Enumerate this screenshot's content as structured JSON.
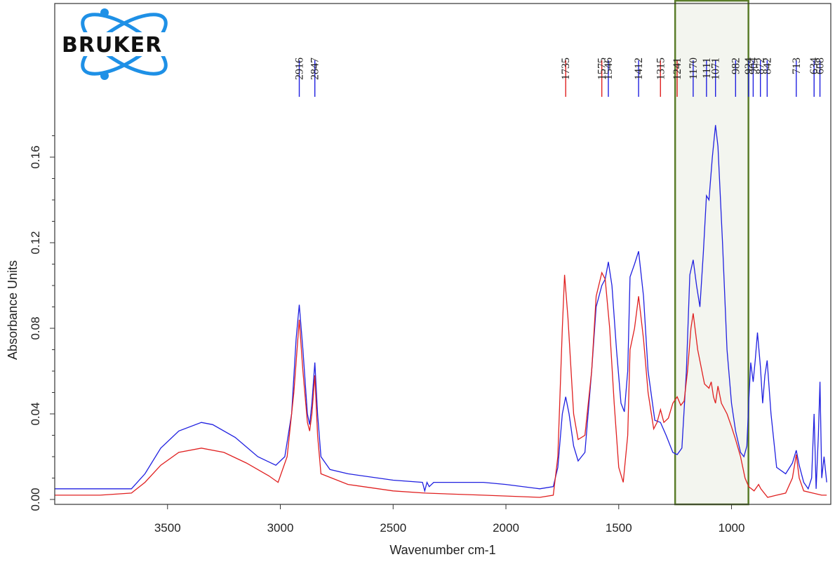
{
  "logo": {
    "text": "BRUKER",
    "accent_color": "#1e90e6"
  },
  "chart_data": {
    "type": "line",
    "xlabel": "Wavenumber cm-1",
    "ylabel": "Absorbance Units",
    "xlim": [
      4000,
      560
    ],
    "ylim": [
      0.0,
      0.18
    ],
    "x_reversed": true,
    "grid": false,
    "x_ticks": [
      3500,
      3000,
      2500,
      2000,
      1500,
      1000
    ],
    "y_ticks": [
      0.0,
      0.04,
      0.08,
      0.12,
      0.16
    ],
    "y_tick_labels": [
      "0.00",
      "0.04",
      "0.08",
      "0.12",
      "0.16"
    ],
    "highlight_region": {
      "x_range": [
        1250,
        925
      ],
      "border_color": "#5a7d2a",
      "fill_color": "#f3f5ef"
    },
    "series": [
      {
        "color": "#2020e0",
        "points": [
          [
            4000,
            0.005
          ],
          [
            3800,
            0.005
          ],
          [
            3660,
            0.005
          ],
          [
            3600,
            0.012
          ],
          [
            3530,
            0.024
          ],
          [
            3450,
            0.032
          ],
          [
            3350,
            0.036
          ],
          [
            3300,
            0.035
          ],
          [
            3200,
            0.029
          ],
          [
            3100,
            0.02
          ],
          [
            3020,
            0.016
          ],
          [
            2980,
            0.02
          ],
          [
            2950,
            0.04
          ],
          [
            2930,
            0.075
          ],
          [
            2916,
            0.091
          ],
          [
            2900,
            0.07
          ],
          [
            2880,
            0.04
          ],
          [
            2870,
            0.035
          ],
          [
            2860,
            0.045
          ],
          [
            2847,
            0.064
          ],
          [
            2835,
            0.04
          ],
          [
            2820,
            0.02
          ],
          [
            2780,
            0.014
          ],
          [
            2700,
            0.012
          ],
          [
            2500,
            0.009
          ],
          [
            2370,
            0.008
          ],
          [
            2360,
            0.004
          ],
          [
            2350,
            0.008
          ],
          [
            2340,
            0.006
          ],
          [
            2320,
            0.008
          ],
          [
            2100,
            0.008
          ],
          [
            2000,
            0.007
          ],
          [
            1850,
            0.005
          ],
          [
            1790,
            0.006
          ],
          [
            1770,
            0.015
          ],
          [
            1750,
            0.04
          ],
          [
            1735,
            0.048
          ],
          [
            1720,
            0.04
          ],
          [
            1700,
            0.025
          ],
          [
            1680,
            0.018
          ],
          [
            1650,
            0.022
          ],
          [
            1620,
            0.06
          ],
          [
            1600,
            0.09
          ],
          [
            1575,
            0.1
          ],
          [
            1560,
            0.103
          ],
          [
            1546,
            0.111
          ],
          [
            1530,
            0.1
          ],
          [
            1510,
            0.07
          ],
          [
            1490,
            0.045
          ],
          [
            1475,
            0.041
          ],
          [
            1460,
            0.06
          ],
          [
            1450,
            0.104
          ],
          [
            1430,
            0.11
          ],
          [
            1412,
            0.116
          ],
          [
            1390,
            0.095
          ],
          [
            1370,
            0.06
          ],
          [
            1340,
            0.037
          ],
          [
            1315,
            0.036
          ],
          [
            1290,
            0.03
          ],
          [
            1260,
            0.022
          ],
          [
            1241,
            0.021
          ],
          [
            1220,
            0.024
          ],
          [
            1200,
            0.06
          ],
          [
            1185,
            0.105
          ],
          [
            1170,
            0.112
          ],
          [
            1155,
            0.1
          ],
          [
            1140,
            0.09
          ],
          [
            1125,
            0.115
          ],
          [
            1111,
            0.142
          ],
          [
            1100,
            0.14
          ],
          [
            1085,
            0.16
          ],
          [
            1071,
            0.175
          ],
          [
            1060,
            0.165
          ],
          [
            1040,
            0.12
          ],
          [
            1020,
            0.07
          ],
          [
            1000,
            0.045
          ],
          [
            982,
            0.032
          ],
          [
            960,
            0.022
          ],
          [
            945,
            0.02
          ],
          [
            932,
            0.025
          ],
          [
            924,
            0.045
          ],
          [
            915,
            0.064
          ],
          [
            904,
            0.055
          ],
          [
            895,
            0.065
          ],
          [
            885,
            0.078
          ],
          [
            872,
            0.062
          ],
          [
            862,
            0.045
          ],
          [
            852,
            0.058
          ],
          [
            842,
            0.065
          ],
          [
            825,
            0.04
          ],
          [
            800,
            0.015
          ],
          [
            760,
            0.012
          ],
          [
            730,
            0.017
          ],
          [
            713,
            0.023
          ],
          [
            700,
            0.016
          ],
          [
            680,
            0.008
          ],
          [
            660,
            0.005
          ],
          [
            645,
            0.01
          ],
          [
            634,
            0.04
          ],
          [
            625,
            0.005
          ],
          [
            615,
            0.03
          ],
          [
            608,
            0.055
          ],
          [
            600,
            0.01
          ],
          [
            590,
            0.02
          ],
          [
            578,
            0.008
          ]
        ]
      },
      {
        "color": "#e02020",
        "points": [
          [
            4000,
            0.002
          ],
          [
            3800,
            0.002
          ],
          [
            3660,
            0.003
          ],
          [
            3600,
            0.008
          ],
          [
            3530,
            0.016
          ],
          [
            3450,
            0.022
          ],
          [
            3350,
            0.024
          ],
          [
            3250,
            0.022
          ],
          [
            3150,
            0.017
          ],
          [
            3050,
            0.011
          ],
          [
            3010,
            0.008
          ],
          [
            2970,
            0.02
          ],
          [
            2940,
            0.05
          ],
          [
            2916,
            0.084
          ],
          [
            2900,
            0.06
          ],
          [
            2880,
            0.036
          ],
          [
            2870,
            0.032
          ],
          [
            2860,
            0.04
          ],
          [
            2847,
            0.058
          ],
          [
            2835,
            0.03
          ],
          [
            2820,
            0.012
          ],
          [
            2700,
            0.007
          ],
          [
            2500,
            0.004
          ],
          [
            2360,
            0.003
          ],
          [
            2100,
            0.002
          ],
          [
            1850,
            0.001
          ],
          [
            1790,
            0.002
          ],
          [
            1770,
            0.02
          ],
          [
            1750,
            0.08
          ],
          [
            1740,
            0.105
          ],
          [
            1725,
            0.085
          ],
          [
            1700,
            0.04
          ],
          [
            1680,
            0.028
          ],
          [
            1650,
            0.03
          ],
          [
            1620,
            0.06
          ],
          [
            1600,
            0.095
          ],
          [
            1575,
            0.106
          ],
          [
            1560,
            0.103
          ],
          [
            1540,
            0.08
          ],
          [
            1520,
            0.045
          ],
          [
            1500,
            0.015
          ],
          [
            1480,
            0.008
          ],
          [
            1460,
            0.03
          ],
          [
            1450,
            0.07
          ],
          [
            1430,
            0.08
          ],
          [
            1412,
            0.095
          ],
          [
            1390,
            0.075
          ],
          [
            1370,
            0.05
          ],
          [
            1345,
            0.033
          ],
          [
            1330,
            0.036
          ],
          [
            1315,
            0.042
          ],
          [
            1300,
            0.036
          ],
          [
            1280,
            0.038
          ],
          [
            1260,
            0.045
          ],
          [
            1241,
            0.048
          ],
          [
            1225,
            0.044
          ],
          [
            1210,
            0.046
          ],
          [
            1195,
            0.06
          ],
          [
            1180,
            0.08
          ],
          [
            1170,
            0.087
          ],
          [
            1150,
            0.07
          ],
          [
            1120,
            0.054
          ],
          [
            1100,
            0.052
          ],
          [
            1090,
            0.055
          ],
          [
            1080,
            0.048
          ],
          [
            1071,
            0.045
          ],
          [
            1060,
            0.053
          ],
          [
            1045,
            0.045
          ],
          [
            1020,
            0.04
          ],
          [
            1000,
            0.034
          ],
          [
            982,
            0.028
          ],
          [
            960,
            0.02
          ],
          [
            940,
            0.01
          ],
          [
            924,
            0.006
          ],
          [
            900,
            0.004
          ],
          [
            880,
            0.007
          ],
          [
            870,
            0.005
          ],
          [
            840,
            0.001
          ],
          [
            800,
            0.002
          ],
          [
            760,
            0.003
          ],
          [
            730,
            0.01
          ],
          [
            713,
            0.021
          ],
          [
            700,
            0.01
          ],
          [
            680,
            0.004
          ],
          [
            640,
            0.003
          ],
          [
            600,
            0.002
          ],
          [
            578,
            0.002
          ]
        ]
      }
    ],
    "peak_labels": [
      {
        "label": "2916",
        "x": 2916,
        "color": "#2020e0"
      },
      {
        "label": "2847",
        "x": 2847,
        "color": "#2020e0"
      },
      {
        "label": "1735",
        "x": 1735,
        "color": "#e02020"
      },
      {
        "label": "1575",
        "x": 1575,
        "color": "#e02020"
      },
      {
        "label": "1546",
        "x": 1546,
        "color": "#2020e0"
      },
      {
        "label": "1412",
        "x": 1412,
        "color": "#2020e0"
      },
      {
        "label": "1315",
        "x": 1315,
        "color": "#e02020"
      },
      {
        "label": "1241",
        "x": 1241,
        "color": "#e02020"
      },
      {
        "label": "1170",
        "x": 1170,
        "color": "#2020e0"
      },
      {
        "label": "1111",
        "x": 1111,
        "color": "#2020e0"
      },
      {
        "label": "1071",
        "x": 1071,
        "color": "#2020e0"
      },
      {
        "label": "982",
        "x": 982,
        "color": "#2020e0"
      },
      {
        "label": "924",
        "x": 924,
        "color": "#2020e0"
      },
      {
        "label": "904",
        "x": 904,
        "color": "#2020e0"
      },
      {
        "label": "872",
        "x": 872,
        "color": "#2020e0"
      },
      {
        "label": "842",
        "x": 842,
        "color": "#2020e0"
      },
      {
        "label": "713",
        "x": 713,
        "color": "#2020e0"
      },
      {
        "label": "634",
        "x": 634,
        "color": "#2020e0"
      },
      {
        "label": "608",
        "x": 608,
        "color": "#2020e0"
      }
    ]
  }
}
